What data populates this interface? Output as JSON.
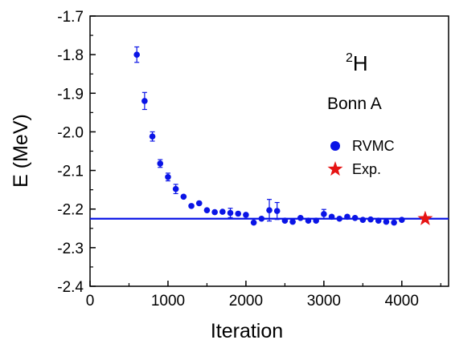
{
  "chart_data": {
    "type": "scatter",
    "title": "",
    "xlabel": "Iteration",
    "ylabel": "E (MeV)",
    "xlim": [
      0,
      4600
    ],
    "ylim": [
      -2.4,
      -1.7
    ],
    "x_ticks": [
      0,
      1000,
      2000,
      3000,
      4000
    ],
    "x_tick_labels": [
      "0",
      "1000",
      "2000",
      "3000",
      "4000"
    ],
    "y_ticks": [
      -1.7,
      -1.8,
      -1.9,
      -2.0,
      -2.1,
      -2.2,
      -2.3,
      -2.4
    ],
    "y_tick_labels": [
      "-1.7",
      "-1.8",
      "-1.9",
      "-2.0",
      "-2.1",
      "-2.2",
      "-2.3",
      "-2.4"
    ],
    "grid": false,
    "annotations": {
      "nucleus_mass_number": "2",
      "nucleus_symbol": "H",
      "potential": "Bonn A"
    },
    "legend": {
      "placement": "right",
      "entries": [
        {
          "label": "RVMC",
          "marker": "circle",
          "color": "#0a14e6"
        },
        {
          "label": "Exp.",
          "marker": "star",
          "color": "#e61414"
        }
      ]
    },
    "reference_line": {
      "y": -2.225,
      "color": "#0a14e6"
    },
    "series": [
      {
        "name": "RVMC",
        "marker": "circle",
        "color": "#0a14e6",
        "x": [
          600,
          700,
          800,
          900,
          1000,
          1100,
          1200,
          1300,
          1400,
          1500,
          1600,
          1700,
          1800,
          1900,
          2000,
          2100,
          2200,
          2300,
          2400,
          2500,
          2600,
          2700,
          2800,
          2900,
          3000,
          3100,
          3200,
          3300,
          3400,
          3500,
          3600,
          3700,
          3800,
          3900,
          4000
        ],
        "y": [
          -1.8,
          -1.92,
          -2.012,
          -2.082,
          -2.117,
          -2.148,
          -2.168,
          -2.192,
          -2.185,
          -2.203,
          -2.208,
          -2.207,
          -2.21,
          -2.212,
          -2.215,
          -2.235,
          -2.225,
          -2.203,
          -2.205,
          -2.23,
          -2.233,
          -2.223,
          -2.23,
          -2.23,
          -2.213,
          -2.22,
          -2.225,
          -2.22,
          -2.223,
          -2.228,
          -2.227,
          -2.23,
          -2.233,
          -2.235,
          -2.228
        ],
        "err": [
          0.02,
          0.022,
          0.012,
          0.01,
          0.01,
          0.012,
          0.006,
          0.006,
          0.006,
          0.004,
          0.004,
          0.004,
          0.012,
          0.006,
          0.004,
          0.006,
          0.004,
          0.028,
          0.022,
          0.004,
          0.004,
          0.004,
          0.004,
          0.004,
          0.012,
          0.004,
          0.004,
          0.004,
          0.004,
          0.004,
          0.004,
          0.004,
          0.008,
          0.008,
          0.004
        ]
      },
      {
        "name": "Exp.",
        "marker": "star",
        "color": "#e61414",
        "x": [
          4300
        ],
        "y": [
          -2.225
        ]
      }
    ]
  }
}
